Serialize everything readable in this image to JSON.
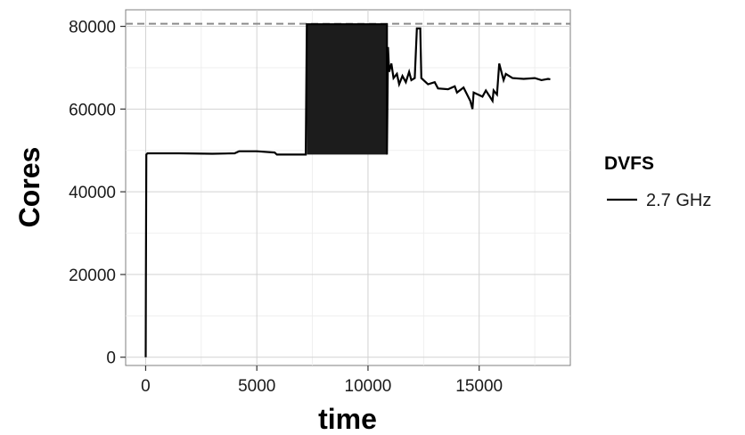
{
  "chart_data": {
    "type": "line",
    "xlabel": "time",
    "ylabel": "Cores",
    "xlim": [
      -900,
      19100
    ],
    "ylim": [
      -2000,
      84000
    ],
    "x_ticks": [
      0,
      5000,
      10000,
      15000
    ],
    "x_tick_labels": [
      "0",
      "5000",
      "10000",
      "15000"
    ],
    "y_ticks": [
      0,
      20000,
      40000,
      60000,
      80000
    ],
    "y_tick_labels": [
      "0",
      "20000",
      "40000",
      "60000",
      "80000"
    ],
    "grid": true,
    "legend": {
      "title": "DVFS",
      "placement": "right"
    },
    "reference_line": {
      "y": 80640,
      "style": "dashed",
      "color": "#8c8c8c"
    },
    "series": [
      {
        "name": "2.7 GHz",
        "color": "#000000",
        "points": [
          [
            0,
            0
          ],
          [
            10,
            17000
          ],
          [
            30,
            49000
          ],
          [
            80,
            49300
          ],
          [
            1500,
            49300
          ],
          [
            3000,
            49200
          ],
          [
            4000,
            49300
          ],
          [
            4200,
            49800
          ],
          [
            5000,
            49800
          ],
          [
            5800,
            49500
          ],
          [
            5900,
            49000
          ],
          [
            7000,
            49000
          ],
          [
            7200,
            49000
          ],
          [
            7250,
            80500
          ],
          [
            10850,
            80500
          ],
          [
            10850,
            49000
          ],
          [
            10900,
            75000
          ],
          [
            10950,
            69000
          ],
          [
            11050,
            71000
          ],
          [
            11150,
            67500
          ],
          [
            11300,
            68500
          ],
          [
            11400,
            66000
          ],
          [
            11550,
            68000
          ],
          [
            11700,
            66500
          ],
          [
            11850,
            69000
          ],
          [
            11950,
            67000
          ],
          [
            12100,
            67500
          ],
          [
            12200,
            79500
          ],
          [
            12350,
            79500
          ],
          [
            12400,
            67500
          ],
          [
            12700,
            66000
          ],
          [
            13000,
            66500
          ],
          [
            13150,
            65000
          ],
          [
            13600,
            64800
          ],
          [
            13900,
            65500
          ],
          [
            14000,
            64000
          ],
          [
            14300,
            65200
          ],
          [
            14600,
            62000
          ],
          [
            14700,
            60000
          ],
          [
            14750,
            64000
          ],
          [
            15150,
            63000
          ],
          [
            15300,
            64500
          ],
          [
            15600,
            62000
          ],
          [
            15650,
            64500
          ],
          [
            15800,
            63500
          ],
          [
            15900,
            71000
          ],
          [
            16100,
            67000
          ],
          [
            16200,
            68500
          ],
          [
            16500,
            67500
          ],
          [
            17000,
            67300
          ],
          [
            17500,
            67500
          ],
          [
            17800,
            67000
          ],
          [
            18100,
            67300
          ],
          [
            18200,
            67200
          ]
        ],
        "dense_band": {
          "x": [
            7250,
            10850
          ],
          "y": [
            49000,
            80500
          ]
        }
      }
    ]
  }
}
